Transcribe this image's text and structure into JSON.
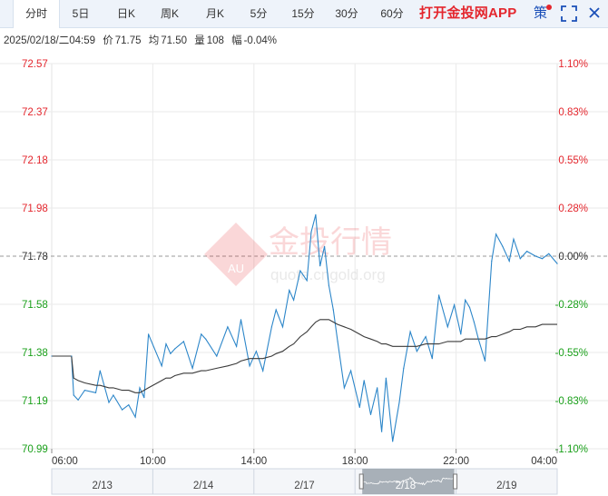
{
  "tabs": [
    {
      "label": "分时",
      "active": true
    },
    {
      "label": "5日"
    },
    {
      "label": "日K"
    },
    {
      "label": "周K"
    },
    {
      "label": "月K"
    },
    {
      "label": "5分"
    },
    {
      "label": "15分"
    },
    {
      "label": "30分"
    },
    {
      "label": "60分"
    }
  ],
  "app_link": "打开金投网APP",
  "strategy_label": "策",
  "info": {
    "datetime": "2025/02/18/二04:59",
    "price_label": "价",
    "price": "71.75",
    "avg_label": "均",
    "avg": "71.50",
    "volume_label": "量",
    "volume": "108",
    "change_label": "幅",
    "change": "-0.04%"
  },
  "watermark": {
    "cn": "金投行情",
    "en": "quote.cngold.org",
    "logo": "AU"
  },
  "colors": {
    "up": "#e4262d",
    "down": "#1aa01a",
    "price_line": "#2c86c9",
    "avg_line": "#3a3a3a",
    "accent": "#1a4fb8"
  },
  "chart_data": {
    "type": "line",
    "title": "",
    "xlabel": "",
    "ylabel": "",
    "prev_close": 71.78,
    "ylim": [
      70.99,
      72.57
    ],
    "y_ticks": [
      "72.57",
      "72.37",
      "72.18",
      "71.98",
      "71.78",
      "71.58",
      "71.38",
      "71.19",
      "70.99"
    ],
    "y2_ticks": [
      "1.10%",
      "0.83%",
      "0.55%",
      "0.28%",
      "0.00%",
      "-0.28%",
      "-0.55%",
      "-0.83%",
      "-1.10%"
    ],
    "x_ticks": [
      "06:00",
      "10:00",
      "14:00",
      "18:00",
      "22:00",
      "04:00"
    ],
    "x_range_hours": [
      6,
      28.98
    ],
    "grid": true,
    "series": [
      {
        "x": [
          6.0,
          6.9,
          7.0,
          7.2,
          7.5,
          8.0,
          8.2,
          8.6,
          8.8,
          9.2,
          9.5,
          9.8,
          10.0,
          10.2,
          10.4,
          11.0,
          11.2,
          11.4,
          11.6,
          12.0,
          12.4,
          12.8,
          13.0,
          13.5,
          14.0,
          14.4,
          14.6,
          15.0,
          15.3,
          15.6,
          16.0,
          16.2,
          16.5,
          16.8,
          17.0,
          17.3,
          17.6,
          17.8,
          18.0,
          18.2,
          18.4,
          18.6,
          18.8,
          19.0,
          19.3,
          19.6,
          20.0,
          20.2,
          20.5,
          20.8,
          21.0,
          21.2,
          21.5,
          21.8,
          22.0,
          22.3,
          22.6,
          23.0,
          23.3,
          23.6,
          24.0,
          24.3,
          24.6,
          24.8,
          25.0,
          25.2,
          25.4,
          25.7,
          26.0,
          26.2,
          26.5,
          26.8,
          27.0,
          27.3,
          27.6,
          28.0,
          28.3,
          28.6,
          28.98
        ],
        "y": [
          71.37,
          71.37,
          71.21,
          71.19,
          71.23,
          71.22,
          71.31,
          71.18,
          71.21,
          71.15,
          71.17,
          71.12,
          71.24,
          71.2,
          71.46,
          71.33,
          71.42,
          71.38,
          71.4,
          71.43,
          71.32,
          71.46,
          71.44,
          71.37,
          71.49,
          71.41,
          71.52,
          71.33,
          71.39,
          71.31,
          71.49,
          71.56,
          71.49,
          71.64,
          71.6,
          71.72,
          71.68,
          71.88,
          71.95,
          71.74,
          71.82,
          71.66,
          71.56,
          71.43,
          71.24,
          71.31,
          71.16,
          71.27,
          71.13,
          71.24,
          71.06,
          71.28,
          71.02,
          71.18,
          71.32,
          71.47,
          71.39,
          71.45,
          71.36,
          71.62,
          71.49,
          71.58,
          71.46,
          71.6,
          71.57,
          71.51,
          71.44,
          71.35,
          71.76,
          71.87,
          71.82,
          71.76,
          71.85,
          71.77,
          71.8,
          71.78,
          71.77,
          71.79,
          71.75
        ],
        "avg_y": [
          71.37,
          71.37,
          71.28,
          71.27,
          71.26,
          71.25,
          71.25,
          71.24,
          71.24,
          71.23,
          71.23,
          71.22,
          71.22,
          71.23,
          71.24,
          71.27,
          71.28,
          71.28,
          71.29,
          71.3,
          71.3,
          71.31,
          71.31,
          71.32,
          71.33,
          71.34,
          71.35,
          71.36,
          71.36,
          71.36,
          71.37,
          71.38,
          71.39,
          71.41,
          71.42,
          71.45,
          71.47,
          71.49,
          71.51,
          71.52,
          71.52,
          71.52,
          71.51,
          71.5,
          71.49,
          71.48,
          71.46,
          71.45,
          71.44,
          71.43,
          71.42,
          71.42,
          71.41,
          71.41,
          71.41,
          71.41,
          71.41,
          71.42,
          71.42,
          71.42,
          71.43,
          71.43,
          71.43,
          71.44,
          71.44,
          71.44,
          71.44,
          71.44,
          71.45,
          71.45,
          71.46,
          71.47,
          71.48,
          71.48,
          71.49,
          71.49,
          71.5,
          71.5,
          71.5
        ]
      }
    ],
    "navigator": {
      "labels": [
        "2/13",
        "2/14",
        "2/17",
        "2/18",
        "2/19"
      ],
      "selected": "2/18"
    }
  }
}
